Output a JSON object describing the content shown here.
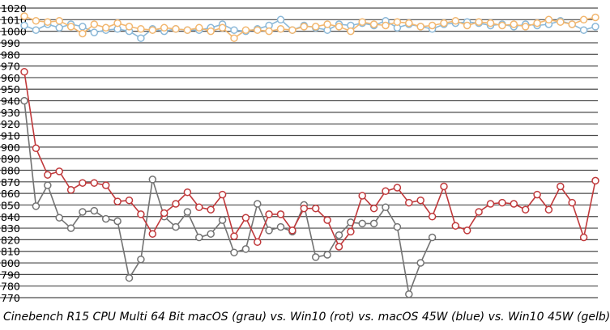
{
  "chart_data": {
    "type": "line",
    "title": "Cinebench R15 CPU Multi 64 Bit macOS (grau) vs. Win10 (rot) vs. macOS 45W (blue) vs. Win10 45W (gelb)",
    "xlabel": "",
    "ylabel": "",
    "ylim": [
      770,
      1020
    ],
    "yticks": [
      770,
      780,
      790,
      800,
      810,
      820,
      830,
      840,
      850,
      860,
      870,
      880,
      890,
      900,
      910,
      920,
      930,
      940,
      950,
      960,
      970,
      980,
      990,
      1000,
      1010,
      1020
    ],
    "grid": true,
    "legend": "none",
    "series": [
      {
        "color": "#737373",
        "values": [
          940,
          849,
          867,
          839,
          830,
          844,
          845,
          838,
          836,
          787,
          803,
          872,
          840,
          831,
          844,
          822,
          825,
          837,
          809,
          812,
          851,
          828,
          831,
          827,
          850,
          805,
          807,
          824,
          835,
          834,
          834,
          848,
          831,
          773,
          800,
          822
        ]
      },
      {
        "color": "#c0393b",
        "values": [
          965,
          899,
          876,
          879,
          863,
          869,
          869,
          867,
          853,
          854,
          842,
          825,
          843,
          851,
          861,
          848,
          846,
          859,
          823,
          839,
          818,
          842,
          842,
          828,
          847,
          847,
          837,
          814,
          827,
          858,
          847,
          862,
          865,
          852,
          854,
          840,
          866,
          832,
          828,
          844,
          851,
          852,
          851,
          846,
          859,
          846,
          866,
          852,
          822,
          871
        ]
      },
      {
        "color": "#8bb8d8",
        "values": [
          1005,
          1001,
          1006,
          1003,
          1006,
          1004,
          999,
          1001,
          1002,
          1000,
          994,
          1002,
          1000,
          1002,
          1001,
          1001,
          1003,
          1006,
          1001,
          1000,
          1002,
          1005,
          1010,
          1001,
          1005,
          1003,
          1001,
          1006,
          1005,
          1007,
          1005,
          1009,
          1003,
          1006,
          1004,
          1002,
          1006,
          1007,
          1008,
          1007,
          1005,
          1006,
          1004,
          1006,
          1005,
          1006,
          1009,
          1006,
          1001,
          1004
        ]
      },
      {
        "color": "#f2b770",
        "values": [
          1013,
          1009,
          1008,
          1009,
          1004,
          998,
          1006,
          1003,
          1007,
          1004,
          1002,
          1001,
          1003,
          1002,
          1001,
          1003,
          1000,
          1003,
          994,
          1001,
          1001,
          1000,
          1002,
          1001,
          1004,
          1004,
          1006,
          1004,
          1000,
          1008,
          1006,
          1005,
          1008,
          1007,
          1004,
          1005,
          1007,
          1009,
          1005,
          1008,
          1007,
          1005,
          1006,
          1004,
          1007,
          1010,
          1008,
          1006,
          1010,
          1012
        ]
      }
    ]
  }
}
